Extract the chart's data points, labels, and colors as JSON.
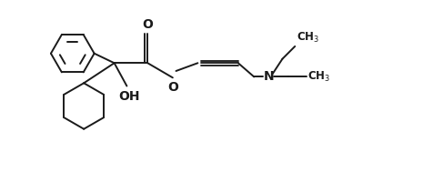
{
  "background_color": "#ffffff",
  "line_color": "#1a1a1a",
  "line_width": 1.4,
  "font_size": 8.5,
  "bold_font_size": 10,
  "xlim": [
    0,
    10
  ],
  "ylim": [
    0,
    4
  ]
}
